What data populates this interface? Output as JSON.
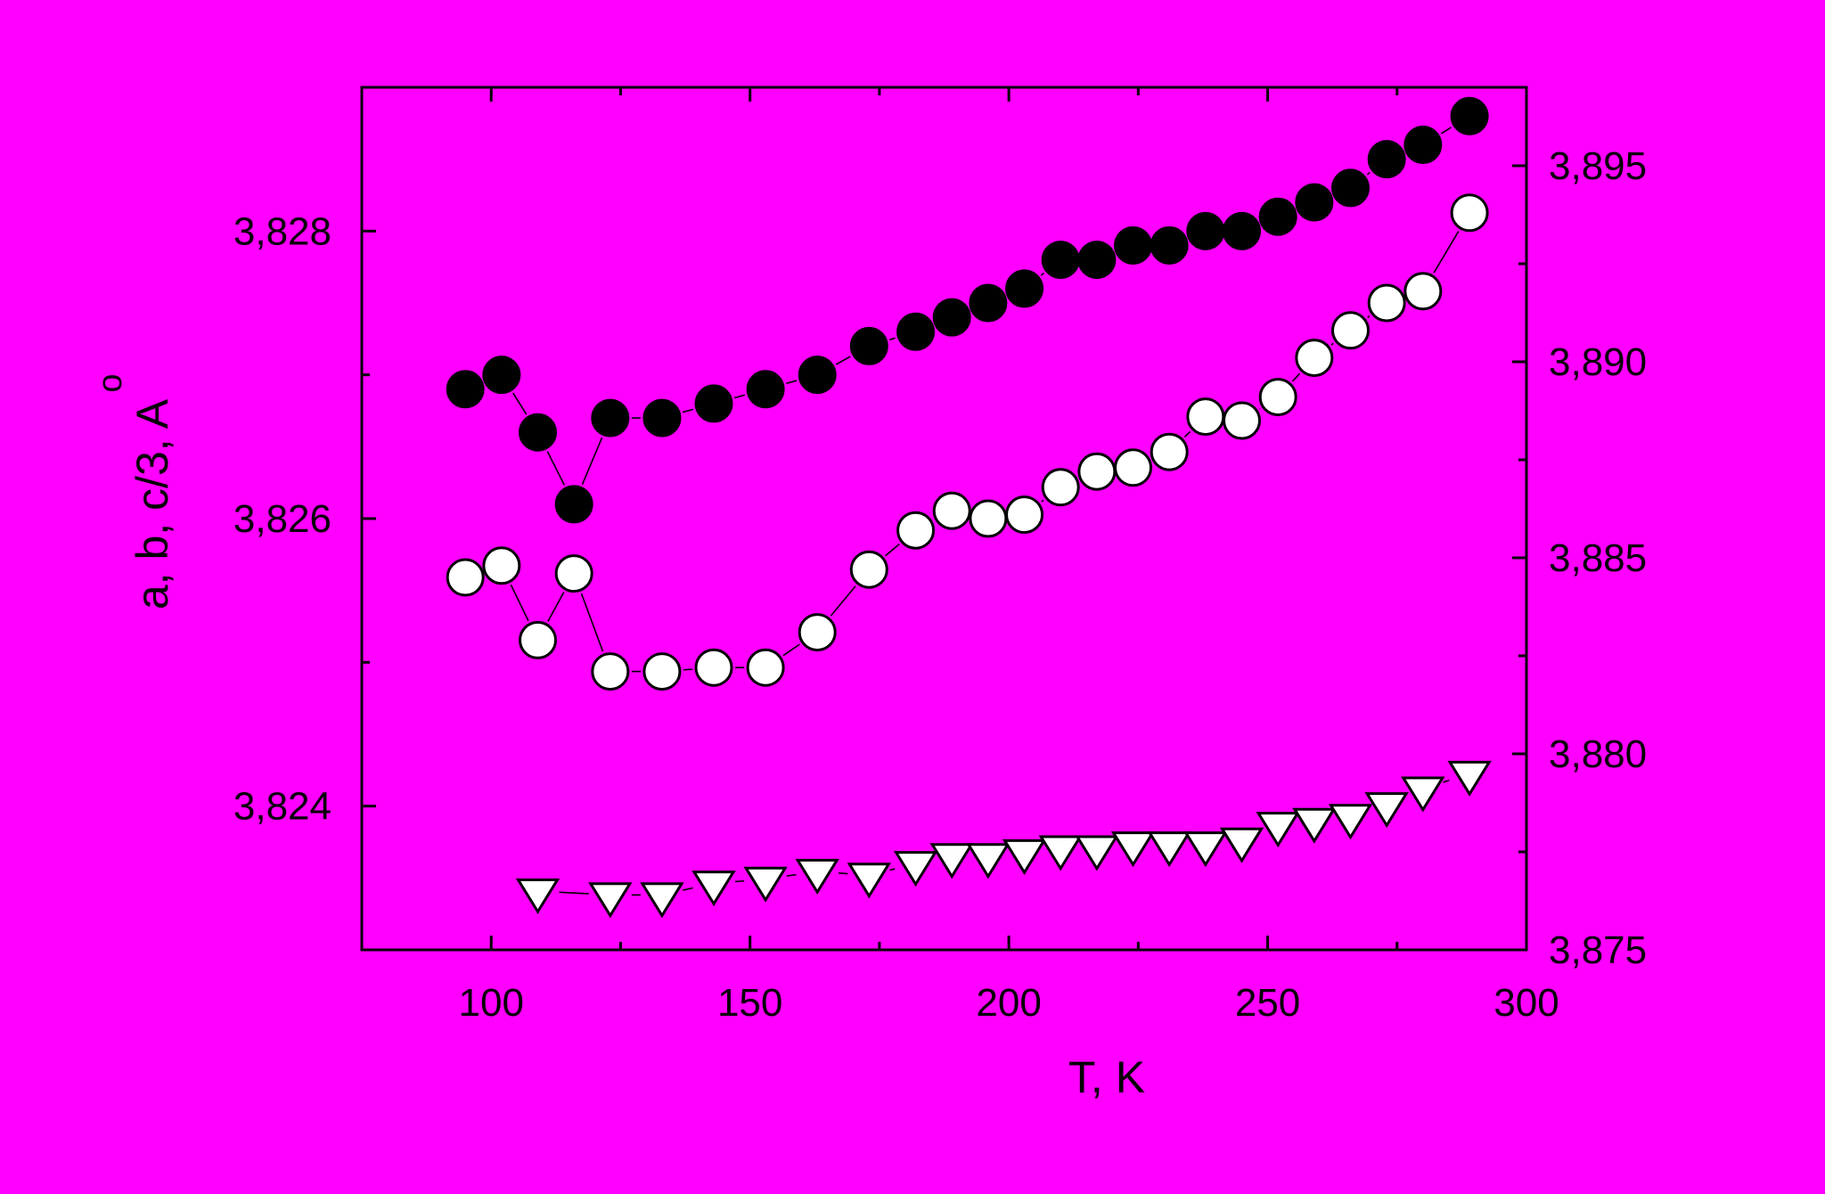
{
  "chart_data": {
    "type": "scatter",
    "xlabel": "T, K",
    "ylabel": "a, b, c/3, A",
    "ylabel_ring": "o",
    "x_ticks": [
      "100",
      "150",
      "200",
      "250",
      "300"
    ],
    "x_tick_values": [
      100,
      150,
      200,
      250,
      300
    ],
    "xlim": [
      75,
      300
    ],
    "y_left": {
      "ylim": [
        3.823,
        3.829
      ],
      "ticks": [
        "3,824",
        "3,826",
        "3,828"
      ],
      "tick_values": [
        3.824,
        3.826,
        3.828
      ]
    },
    "y_right": {
      "ylim": [
        3.875,
        3.897
      ],
      "ticks": [
        "3,875",
        "3,880",
        "3,885",
        "3,890",
        "3,895"
      ],
      "tick_values": [
        3.875,
        3.88,
        3.885,
        3.89,
        3.895
      ]
    },
    "grid": false,
    "legend": "none",
    "series": [
      {
        "marker": "filled-circle",
        "axis": "left",
        "color": "#000000",
        "x": [
          95,
          102,
          109,
          116,
          123,
          133,
          143,
          153,
          163,
          173,
          182,
          189,
          196,
          203,
          210,
          217,
          224,
          231,
          238,
          245,
          252,
          259,
          266,
          273,
          280,
          289
        ],
        "y": [
          3.8269,
          3.827,
          3.8266,
          3.8261,
          3.8267,
          3.8267,
          3.8268,
          3.8269,
          3.827,
          3.8272,
          3.8273,
          3.8274,
          3.8275,
          3.8276,
          3.8278,
          3.8278,
          3.8279,
          3.8279,
          3.828,
          3.828,
          3.8281,
          3.8282,
          3.8283,
          3.8285,
          3.8286,
          3.8288
        ]
      },
      {
        "marker": "open-circle",
        "axis": "right",
        "color": "#FFFFFF",
        "x": [
          95,
          102,
          109,
          116,
          123,
          133,
          143,
          153,
          163,
          173,
          182,
          189,
          196,
          203,
          210,
          217,
          224,
          231,
          238,
          245,
          252,
          259,
          266,
          273,
          280,
          289
        ],
        "y": [
          3.8845,
          3.8848,
          3.8829,
          3.8846,
          3.8821,
          3.8821,
          3.8822,
          3.8822,
          3.8831,
          3.8847,
          3.8857,
          3.8862,
          3.886,
          3.8861,
          3.8868,
          3.8872,
          3.8873,
          3.8877,
          3.8886,
          3.8885,
          3.8891,
          3.8901,
          3.8908,
          3.8915,
          3.8918,
          3.8938
        ]
      },
      {
        "marker": "open-triangle-down",
        "axis": "right",
        "color": "#FFFFFF",
        "x": [
          109,
          123,
          133,
          143,
          153,
          163,
          173,
          182,
          189,
          196,
          203,
          210,
          217,
          224,
          231,
          238,
          245,
          252,
          259,
          266,
          273,
          280,
          289
        ],
        "y": [
          3.8765,
          3.8764,
          3.8764,
          3.8767,
          3.8768,
          3.877,
          3.8769,
          3.8772,
          3.8774,
          3.8774,
          3.8775,
          3.8776,
          3.8776,
          3.8777,
          3.8777,
          3.8777,
          3.8778,
          3.8782,
          3.8783,
          3.8784,
          3.8787,
          3.8791,
          3.8795
        ]
      }
    ]
  }
}
